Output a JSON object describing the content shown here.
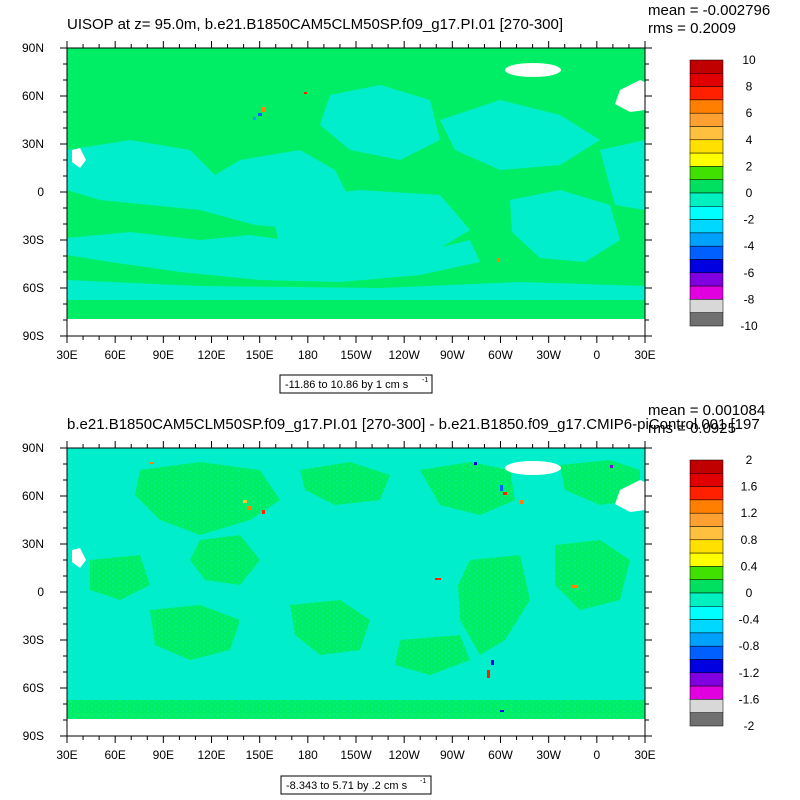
{
  "chart_data": [
    {
      "type": "heatmap",
      "title": "UISOP at z=  95.0m, b.e21.B1850CAM5CLM50SP.f09_g17.PI.01 [270-300]",
      "mean_text": "mean = -0.002796",
      "rms_text": "rms = 0.2009",
      "range_text": "-11.86 to 10.86 by 1 cm s",
      "range_unit_exp": "-1",
      "x_ticks": [
        "30E",
        "60E",
        "90E",
        "120E",
        "150E",
        "180",
        "150W",
        "120W",
        "90W",
        "60W",
        "30W",
        "0",
        "30E"
      ],
      "y_ticks": [
        "90N",
        "60N",
        "30N",
        "0",
        "30S",
        "60S",
        "90S"
      ],
      "colorbar_labels": [
        "10",
        "8",
        "6",
        "4",
        "2",
        "0",
        "-2",
        "-4",
        "-6",
        "-8",
        "-10"
      ],
      "colorbar_range": [
        -10,
        10
      ]
    },
    {
      "type": "heatmap",
      "title": "b.e21.B1850CAM5CLM50SP.f09_g17.PI.01 [270-300] - b.e21.B1850.f09_g17.CMIP6-piControl.001 [197",
      "mean_text": "mean = 0.001084",
      "rms_text": "rms = 0.0925",
      "range_text": "-8.343 to 5.71 by .2 cm s",
      "range_unit_exp": "-1",
      "x_ticks": [
        "30E",
        "60E",
        "90E",
        "120E",
        "150E",
        "180",
        "150W",
        "120W",
        "90W",
        "60W",
        "30W",
        "0",
        "30E"
      ],
      "y_ticks": [
        "90N",
        "60N",
        "30N",
        "0",
        "30S",
        "60S",
        "90S"
      ],
      "colorbar_labels": [
        "2",
        "1.6",
        "1.2",
        "0.8",
        "0.4",
        "0",
        "-0.4",
        "-0.8",
        "-1.2",
        "-1.6",
        "-2"
      ],
      "colorbar_range": [
        -2,
        2
      ]
    }
  ],
  "colors": {
    "colorbar_top_to_bottom": [
      "#c00000",
      "#e00000",
      "#ff2000",
      "#ff7f00",
      "#ffa030",
      "#ffc040",
      "#ffe000",
      "#ffff00",
      "#40e000",
      "#00e060",
      "#00f0c0",
      "#00ffff",
      "#00d8ff",
      "#00a0ff",
      "#0060ff",
      "#0000e0",
      "#8000e0",
      "#e000e0",
      "#d8d8d8",
      "#707070"
    ],
    "ocean_base": "#00ee66",
    "ocean_secondary": "#00eecc"
  }
}
